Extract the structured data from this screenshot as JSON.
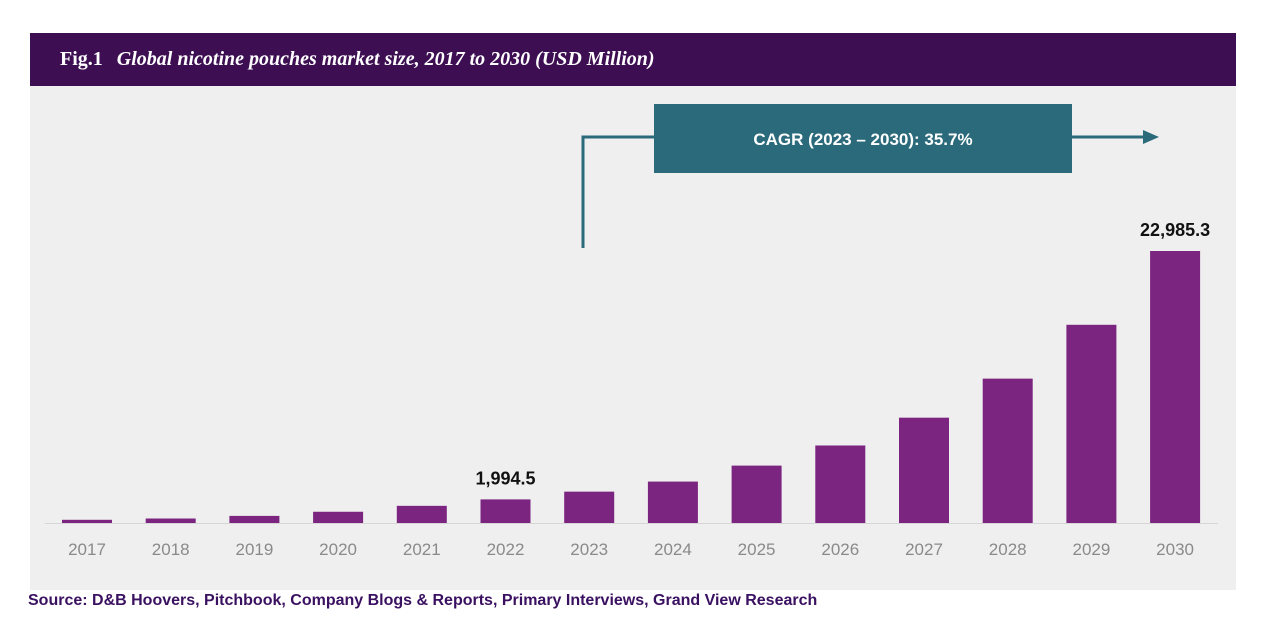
{
  "header": {
    "fig_label": "Fig.1",
    "title": "Global nicotine pouches market size, 2017 to 2030 (USD Million)"
  },
  "annotation": {
    "cagr_text": "CAGR (2023 – 2030): 35.7%"
  },
  "source": "Source: D&B Hoovers, Pitchbook, Company Blogs & Reports, Primary Interviews, Grand View Research",
  "colors": {
    "bar": "#7b2580",
    "title_bg": "#3d0f52",
    "cagr_box": "#2b6a7b"
  },
  "chart_data": {
    "type": "bar",
    "title": "Global nicotine pouches market size, 2017 to 2030 (USD Million)",
    "xlabel": "",
    "ylabel": "USD Million",
    "categories": [
      "2017",
      "2018",
      "2019",
      "2020",
      "2021",
      "2022",
      "2023",
      "2024",
      "2025",
      "2026",
      "2027",
      "2028",
      "2029",
      "2030"
    ],
    "values": [
      270,
      380,
      600,
      950,
      1450,
      1994.5,
      2650,
      3500,
      4850,
      6550,
      8900,
      12200,
      16750,
      22985.3
    ],
    "data_labels": {
      "2022": "1,994.5",
      "2030": "22,985.3"
    },
    "ylim": [
      0,
      22985.3
    ],
    "grid": false,
    "legend": "none"
  }
}
